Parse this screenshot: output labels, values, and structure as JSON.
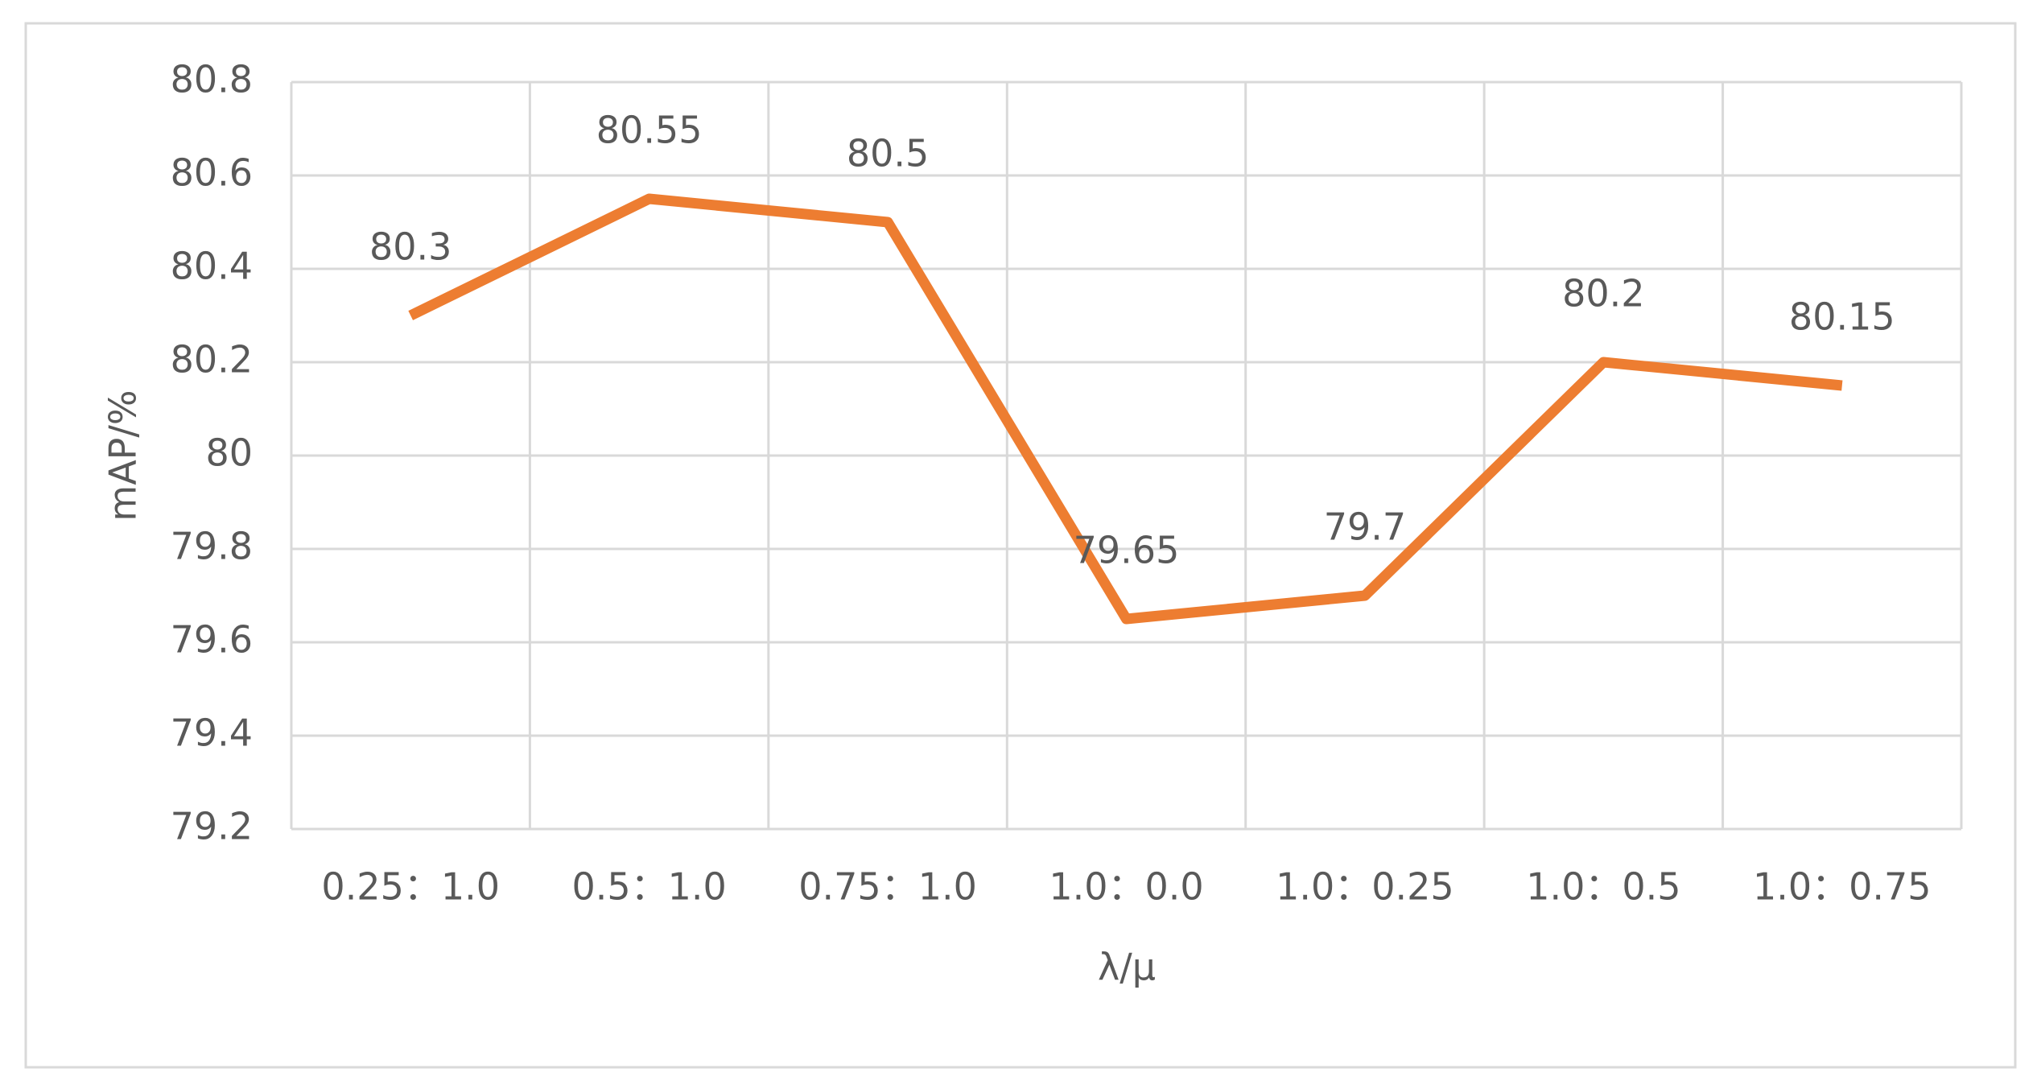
{
  "chart_data": {
    "type": "line",
    "categories": [
      "0.25：1.0",
      "0.5：1.0",
      "0.75：1.0",
      "1.0：0.0",
      "1.0：0.25",
      "1.0：0.5",
      "1.0：0.75"
    ],
    "x_label": "λ/μ",
    "y_label": "mAP/%",
    "series": [
      {
        "name": "mAP",
        "color": "#ED7D31",
        "values": [
          80.3,
          80.55,
          80.5,
          79.65,
          79.7,
          80.2,
          80.15
        ]
      }
    ],
    "ylim": [
      79.2,
      80.8
    ],
    "yticks": [
      79.2,
      79.4,
      79.6,
      79.8,
      80,
      80.2,
      80.4,
      80.6,
      80.8
    ],
    "grid": true,
    "data_labels": true
  }
}
